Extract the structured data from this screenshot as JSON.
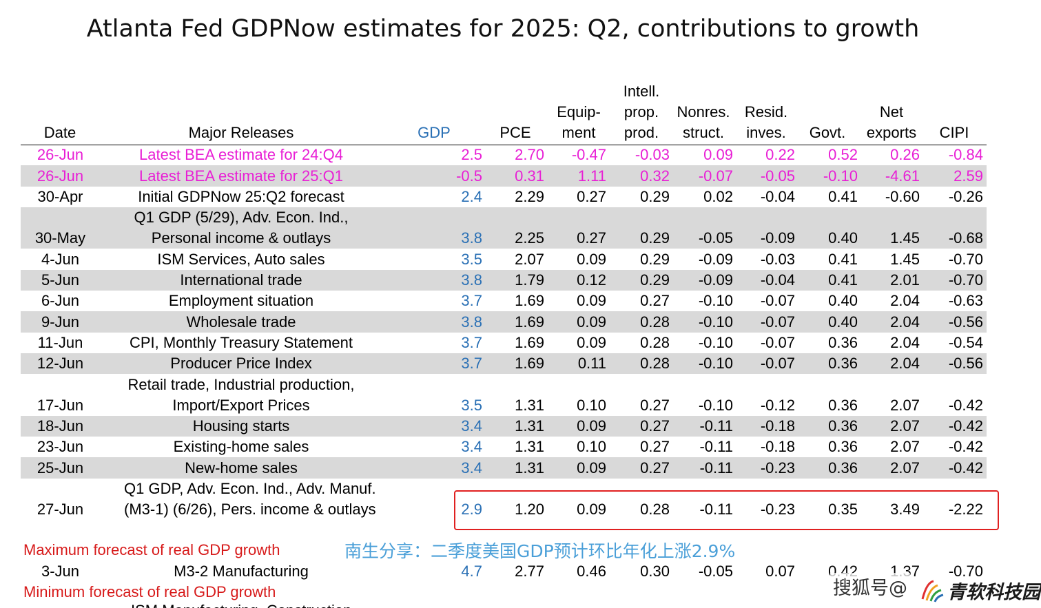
{
  "chart_data": {
    "type": "table",
    "title": "Atlanta Fed GDPNow estimates for 2025: Q2, contributions to growth",
    "columns": [
      {
        "key": "date",
        "lines": [
          "Date"
        ]
      },
      {
        "key": "rel",
        "lines": [
          "Major Releases"
        ]
      },
      {
        "key": "gdp",
        "lines": [
          "GDP"
        ]
      },
      {
        "key": "pce",
        "lines": [
          "PCE"
        ]
      },
      {
        "key": "equip",
        "lines": [
          "Equip-",
          "ment"
        ]
      },
      {
        "key": "ipp",
        "lines": [
          "Intell.",
          "prop.",
          "prod."
        ]
      },
      {
        "key": "nonres",
        "lines": [
          "Nonres.",
          "struct."
        ]
      },
      {
        "key": "resid",
        "lines": [
          "Resid.",
          "inves."
        ]
      },
      {
        "key": "govt",
        "lines": [
          "Govt."
        ]
      },
      {
        "key": "netx",
        "lines": [
          "Net",
          "exports"
        ]
      },
      {
        "key": "cipi",
        "lines": [
          "CIPI"
        ]
      }
    ],
    "rows": [
      {
        "date": "26-Jun",
        "release": [
          "Latest BEA estimate for 24:Q4"
        ],
        "values": [
          "2.5",
          "2.70",
          "-0.47",
          "-0.03",
          "0.09",
          "0.22",
          "0.52",
          "0.26",
          "-0.84"
        ],
        "style": "bea",
        "shade": false
      },
      {
        "date": "26-Jun",
        "release": [
          "Latest BEA estimate for 25:Q1"
        ],
        "values": [
          "-0.5",
          "0.31",
          "1.11",
          "0.32",
          "-0.07",
          "-0.05",
          "-0.10",
          "-4.61",
          "2.59"
        ],
        "style": "bea",
        "shade": true
      },
      {
        "date": "30-Apr",
        "release": [
          "Initial GDPNow 25:Q2 forecast"
        ],
        "values": [
          "2.4",
          "2.29",
          "0.27",
          "0.29",
          "0.02",
          "-0.04",
          "0.41",
          "-0.60",
          "-0.26"
        ],
        "shade": false
      },
      {
        "date": "30-May",
        "release": [
          "Q1 GDP (5/29), Adv. Econ. Ind.,",
          "Personal income & outlays"
        ],
        "values": [
          "3.8",
          "2.25",
          "0.27",
          "0.29",
          "-0.05",
          "-0.09",
          "0.40",
          "1.45",
          "-0.68"
        ],
        "shade": true
      },
      {
        "date": "4-Jun",
        "release": [
          "ISM Services, Auto sales"
        ],
        "values": [
          "3.5",
          "2.07",
          "0.09",
          "0.29",
          "-0.09",
          "-0.03",
          "0.41",
          "1.45",
          "-0.70"
        ],
        "shade": false
      },
      {
        "date": "5-Jun",
        "release": [
          "International trade"
        ],
        "values": [
          "3.8",
          "1.79",
          "0.12",
          "0.29",
          "-0.09",
          "-0.04",
          "0.41",
          "2.01",
          "-0.70"
        ],
        "shade": true
      },
      {
        "date": "6-Jun",
        "release": [
          "Employment situation"
        ],
        "values": [
          "3.7",
          "1.69",
          "0.09",
          "0.27",
          "-0.10",
          "-0.07",
          "0.40",
          "2.04",
          "-0.63"
        ],
        "shade": false
      },
      {
        "date": "9-Jun",
        "release": [
          "Wholesale trade"
        ],
        "values": [
          "3.8",
          "1.69",
          "0.09",
          "0.28",
          "-0.10",
          "-0.07",
          "0.40",
          "2.04",
          "-0.56"
        ],
        "shade": true
      },
      {
        "date": "11-Jun",
        "release": [
          "CPI, Monthly Treasury Statement"
        ],
        "values": [
          "3.7",
          "1.69",
          "0.09",
          "0.28",
          "-0.10",
          "-0.07",
          "0.36",
          "2.04",
          "-0.54"
        ],
        "shade": false
      },
      {
        "date": "12-Jun",
        "release": [
          "Producer Price Index"
        ],
        "values": [
          "3.7",
          "1.69",
          "0.11",
          "0.28",
          "-0.10",
          "-0.07",
          "0.36",
          "2.04",
          "-0.56"
        ],
        "shade": true
      },
      {
        "date": "17-Jun",
        "release": [
          "Retail trade, Industrial production,",
          "Import/Export Prices"
        ],
        "values": [
          "3.5",
          "1.31",
          "0.10",
          "0.27",
          "-0.10",
          "-0.12",
          "0.36",
          "2.07",
          "-0.42"
        ],
        "shade": false
      },
      {
        "date": "18-Jun",
        "release": [
          "Housing starts"
        ],
        "values": [
          "3.4",
          "1.31",
          "0.09",
          "0.27",
          "-0.11",
          "-0.18",
          "0.36",
          "2.07",
          "-0.42"
        ],
        "shade": true
      },
      {
        "date": "23-Jun",
        "release": [
          "Existing-home sales"
        ],
        "values": [
          "3.4",
          "1.31",
          "0.10",
          "0.27",
          "-0.11",
          "-0.18",
          "0.36",
          "2.07",
          "-0.42"
        ],
        "shade": false
      },
      {
        "date": "25-Jun",
        "release": [
          "New-home sales"
        ],
        "values": [
          "3.4",
          "1.31",
          "0.09",
          "0.27",
          "-0.11",
          "-0.23",
          "0.36",
          "2.07",
          "-0.42"
        ],
        "shade": true
      },
      {
        "date": "27-Jun",
        "release": [
          "Q1 GDP, Adv. Econ. Ind., Adv. Manuf.",
          "(M3-1) (6/26), Pers. income & outlays"
        ],
        "values": [
          "2.9",
          "1.20",
          "0.09",
          "0.28",
          "-0.11",
          "-0.23",
          "0.35",
          "3.49",
          "-2.22"
        ],
        "shade": false,
        "highlight": true
      }
    ],
    "max_label": "Maximum forecast of real GDP growth",
    "max_row": {
      "date": "3-Jun",
      "release": [
        "M3-2 Manufacturing"
      ],
      "values": [
        "4.7",
        "2.77",
        "0.46",
        "0.30",
        "-0.05",
        "0.07",
        "0.42",
        "1.37",
        "-0.70"
      ]
    },
    "min_label": "Minimum forecast of real GDP growth",
    "min_row_partial": "ISM Manufacturing, Construction",
    "annotation": "南生分享：二季度美国GDP预计环比年化上涨2.9%",
    "colors": {
      "gdp": "#2a70b5",
      "bea": "#e81fd5",
      "shade": "#d9d9d9",
      "highlight": "#e02020",
      "max_min_label": "#d71a1a",
      "annotation": "#4a9fd8"
    }
  },
  "watermarks": [
    "搜狐号@",
    "青软科技园"
  ]
}
